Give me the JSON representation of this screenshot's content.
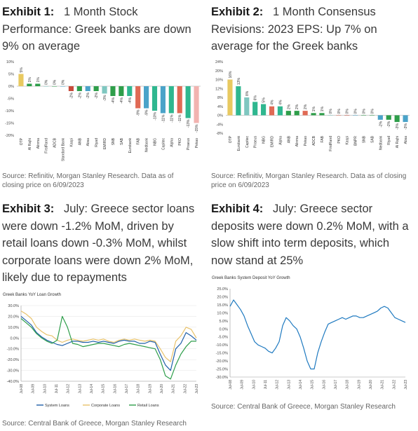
{
  "exhibits": [
    {
      "label": "Exhibit 1:",
      "title": "1 Month Stock Performance: Greek banks are down 9% on average",
      "source": "Source: Refinitiv, Morgan Stanley Research. Data as of closing price on 6/09/2023"
    },
    {
      "label": "Exhibit 2:",
      "title": "1 Month Consensus Revisions: 2023 EPS: Up 7% on average for the Greek banks",
      "source": "Source: Refinitiv, Morgan Stanley Research. Data as of closing price on 6/09/2023"
    },
    {
      "label": "Exhibit 3:",
      "title": "July: Greece sector loans were down -1.2% MoM, driven by retail loans down -0.3% MoM, whilst corporate loans were down 2% MoM, likely due to repayments",
      "source": "Source: Central Bank of Greece, Morgan Stanley Research"
    },
    {
      "label": "Exhibit 4:",
      "title": "July: Greece sector deposits were down 0.2% MoM, with a slow shift into term deposits, which now stand at 25%",
      "source": "Source: Central Bank of Greece, Morgan Stanley Research"
    }
  ],
  "chart_data": [
    {
      "type": "bar",
      "categories": [
        "OTP",
        "Al Rajhi",
        "Alinma",
        "FirstRand",
        "ADCB",
        "Standard Bank",
        "Kaspi",
        "ANB",
        "Absa",
        "Riyad",
        "EMIRD",
        "SNB",
        "SAB",
        "Eurobank",
        "FAB",
        "Nedbank",
        "NBG",
        "Capitec",
        "Alpha",
        "PKO",
        "Piraeus",
        "Pekao"
      ],
      "values": [
        5,
        1,
        1,
        0,
        0,
        0,
        -2,
        -2,
        -2,
        -2,
        -3,
        -4,
        -4,
        -4,
        -9,
        -9,
        -10,
        -11,
        -11,
        -11,
        -13,
        -15
      ],
      "value_labels": [
        "5%",
        "1%",
        "1%",
        "0%",
        "0%",
        "0%",
        "-2%",
        "-2%",
        "-2%",
        "-2%",
        "-3%",
        "-4%",
        "-4%",
        "-4%",
        "-9%",
        "-9%",
        "-10%",
        "-11%",
        "-11%",
        "-11%",
        "-13%",
        "-15%"
      ],
      "colors": [
        "#e8c960",
        "#2e9e4a",
        "#2e9e4a",
        "#7fc7c0",
        "#2e9e4a",
        "#4aa3c9",
        "#c84a3a",
        "#2e9e4a",
        "#4aa3c9",
        "#2e9e4a",
        "#7fc7c0",
        "#2e9e4a",
        "#2e9e4a",
        "#2fb78f",
        "#e06a55",
        "#4aa3c9",
        "#2fb78f",
        "#4aa3c9",
        "#2fb78f",
        "#e06a55",
        "#2fb78f",
        "#f2b3b0"
      ],
      "yticks": [
        "10%",
        "5%",
        "0%",
        "-5%",
        "-10%",
        "-15%",
        "-20%"
      ],
      "ylim": [
        -20,
        10
      ]
    },
    {
      "type": "bar",
      "categories": [
        "OTP",
        "Eurobank",
        "Capitec",
        "Piraeus",
        "NBG",
        "EMIRD",
        "Alpha",
        "ANB",
        "Alinma",
        "Pekao",
        "ADCB",
        "FAB",
        "FirstRand",
        "PKO",
        "Kaspi",
        "BNPR",
        "SNB",
        "SAB",
        "Nedbank",
        "Riyad",
        "Al Rajhi",
        "Absa"
      ],
      "values": [
        16,
        13,
        8,
        6,
        5,
        4,
        4,
        2,
        2,
        2,
        1,
        1,
        0,
        0,
        0,
        0,
        0,
        0,
        -2,
        -2,
        -3,
        -3
      ],
      "value_labels": [
        "16%",
        "13%",
        "8%",
        "6%",
        "5%",
        "4%",
        "4%",
        "2%",
        "2%",
        "2%",
        "1%",
        "1%",
        "0%",
        "0%",
        "0%",
        "0%",
        "0%",
        "0%",
        "-2%",
        "-2%",
        "-3%",
        "-3%"
      ],
      "colors": [
        "#e8c960",
        "#2fb78f",
        "#7fc7c0",
        "#2fb78f",
        "#2fb78f",
        "#e06a55",
        "#2fb78f",
        "#2e9e4a",
        "#2e9e4a",
        "#e06a55",
        "#2e9e4a",
        "#2e9e4a",
        "#7fc7c0",
        "#e06a55",
        "#c84a3a",
        "#4aa3c9",
        "#2e9e4a",
        "#2e9e4a",
        "#4aa3c9",
        "#2e9e4a",
        "#2e9e4a",
        "#4aa3c9"
      ],
      "yticks": [
        "24%",
        "20%",
        "16%",
        "12%",
        "8%",
        "4%",
        "0%",
        "-4%",
        "-8%"
      ],
      "ylim": [
        -8,
        24
      ]
    },
    {
      "type": "line",
      "title": "Greek Banks YoY Loan Growth",
      "x_ticks": [
        "Jul-08",
        "Jul-09",
        "Jul-10",
        "Jul-11",
        "Jul-12",
        "Jul-13",
        "Jul-14",
        "Jul-15",
        "Jul-16",
        "Jul-17",
        "Jul-18",
        "Jul-19",
        "Jul-20",
        "Jul-21",
        "Jul-22",
        "Jul-23"
      ],
      "yticks": [
        "30.0%",
        "20.0%",
        "10.0%",
        "0.0%",
        "-10.0%",
        "-20.0%",
        "-30.0%",
        "-40.0%"
      ],
      "ylim": [
        -40,
        30
      ],
      "series": [
        {
          "name": "System Loans",
          "color": "#1f5fa8",
          "values": [
            20,
            16,
            12,
            5,
            1,
            -2,
            -4,
            -6,
            -7,
            -5,
            -3,
            -3,
            -4,
            -4,
            -3,
            -4,
            -3,
            -4,
            -5,
            -3,
            -2,
            -3,
            -3,
            -5,
            -5,
            -3,
            -4,
            -15,
            -25,
            -30,
            -10,
            -5,
            5,
            2,
            -2
          ]
        },
        {
          "name": "Corporate Loans",
          "color": "#e8c26a",
          "values": [
            25,
            22,
            18,
            10,
            6,
            3,
            2,
            -2,
            -4,
            -2,
            -1,
            -2,
            -3,
            -2,
            -1,
            -2,
            -1,
            -3,
            -4,
            -2,
            -1,
            -2,
            -1,
            -2,
            -3,
            -2,
            -3,
            -10,
            -18,
            -22,
            -3,
            2,
            10,
            8,
            0
          ]
        },
        {
          "name": "Retail Loans",
          "color": "#2e9e4a",
          "values": [
            18,
            14,
            10,
            4,
            0,
            -3,
            -5,
            -2,
            20,
            10,
            -5,
            -6,
            -8,
            -7,
            -6,
            -5,
            -5,
            -6,
            -7,
            -8,
            -6,
            -5,
            -6,
            -7,
            -8,
            -9,
            -10,
            -20,
            -35,
            -38,
            -25,
            -15,
            -8,
            -3,
            -3
          ]
        }
      ]
    },
    {
      "type": "line",
      "title": "Greek Banks System Deposit YoY Growth",
      "x_ticks": [
        "Jul-08",
        "Jul-09",
        "Jul-10",
        "Jul-11",
        "Jul-12",
        "Jul-13",
        "Jul-14",
        "Jul-15",
        "Jul-16",
        "Jul-17",
        "Jul-18",
        "Jul-19",
        "Jul-20",
        "Jul-21",
        "Jul-22",
        "Jul-23"
      ],
      "yticks": [
        "25.0%",
        "20.0%",
        "15.0%",
        "10.0%",
        "5.0%",
        "0.0%",
        "-5.0%",
        "-10.0%",
        "-15.0%",
        "-20.0%",
        "-25.0%",
        "-30.0%"
      ],
      "ylim": [
        -30,
        25
      ],
      "series": [
        {
          "name": "System Deposits",
          "color": "#1f7ac0",
          "values": [
            14,
            18,
            15,
            12,
            8,
            2,
            -3,
            -8,
            -10,
            -11,
            -12,
            -14,
            -15,
            -12,
            -8,
            2,
            7,
            5,
            2,
            0,
            -5,
            -12,
            -20,
            -25,
            -25,
            -15,
            -8,
            -2,
            3,
            4,
            5,
            6,
            7,
            6,
            7,
            8,
            8,
            7,
            7,
            8,
            9,
            10,
            11,
            13,
            14,
            13,
            10,
            7,
            6,
            5,
            4
          ]
        }
      ]
    }
  ]
}
